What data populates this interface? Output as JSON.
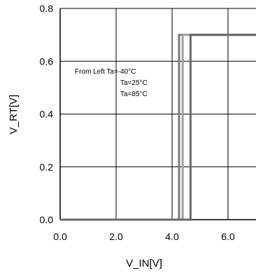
{
  "chart_data": {
    "type": "line",
    "xlabel": "V_IN[V]",
    "ylabel": "V_RT[V]",
    "xlim": [
      0,
      7
    ],
    "ylim": [
      0,
      0.8
    ],
    "x_ticks": [
      0,
      2,
      4,
      6
    ],
    "x_tick_labels": [
      "0.0",
      "2.0",
      "4.0",
      "6.0"
    ],
    "y_ticks": [
      0,
      0.2,
      0.4,
      0.6,
      0.8
    ],
    "y_tick_labels": [
      "0.0",
      "0.2",
      "0.4",
      "0.6",
      "0.8"
    ],
    "grid": true,
    "annotations": [
      "From Left   Ta=-40°C",
      "Ta=25°C",
      "Ta=85°C"
    ],
    "series": [
      {
        "x": [
          0,
          4.25,
          4.25,
          7
        ],
        "y": [
          0,
          0,
          0.7,
          0.7
        ],
        "color": "#7a7a7a"
      },
      {
        "x": [
          0,
          4.38,
          4.38,
          7
        ],
        "y": [
          0,
          0,
          0.7,
          0.7
        ],
        "color": "#a0a0a0"
      },
      {
        "x": [
          0,
          4.66,
          4.66,
          7
        ],
        "y": [
          0,
          0,
          0.7,
          0.7
        ],
        "color": "#6a6a6a"
      }
    ]
  }
}
